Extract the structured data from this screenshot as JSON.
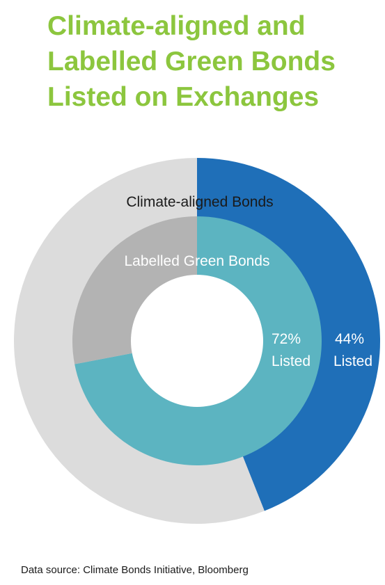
{
  "title_lines": [
    "Climate-aligned and",
    "Labelled Green Bonds",
    "Listed on Exchanges"
  ],
  "source": "Data source: Climate Bonds Initiative, Bloomberg",
  "chart_data": {
    "type": "pie",
    "rings": [
      {
        "name": "Climate-aligned Bonds",
        "slices": [
          {
            "label": "Listed",
            "value": 44,
            "color": "#1f6fb8"
          },
          {
            "label": "",
            "value": 56,
            "color": "#dcdcdc"
          }
        ],
        "annotation": {
          "value": "44%",
          "label": "Listed"
        }
      },
      {
        "name": "Labelled Green Bonds",
        "slices": [
          {
            "label": "Listed",
            "value": 72,
            "color": "#5cb4c1"
          },
          {
            "label": "",
            "value": 28,
            "color": "#b3b3b3"
          }
        ],
        "annotation": {
          "value": "72%",
          "label": "Listed"
        }
      }
    ],
    "unit": "%"
  }
}
